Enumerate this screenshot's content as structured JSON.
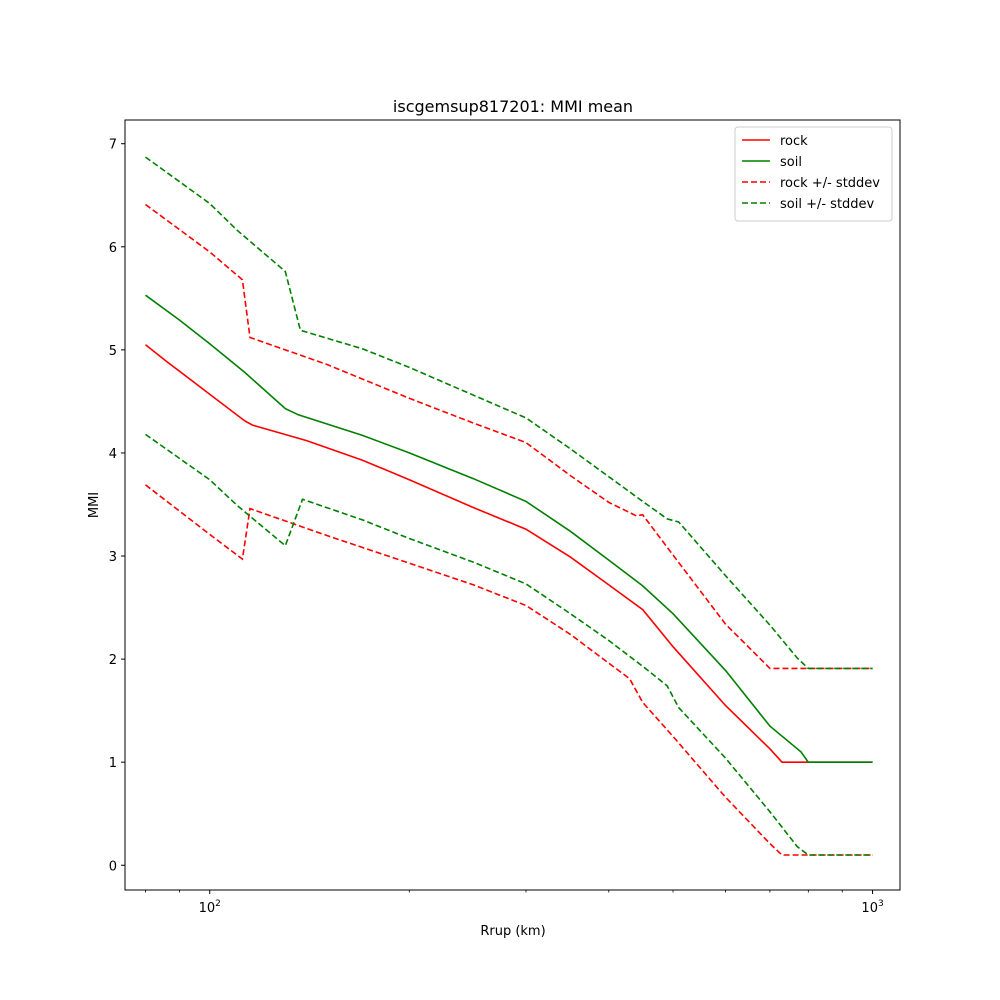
{
  "chart_data": {
    "type": "line",
    "title": "iscgemsup817201: MMI mean",
    "xlabel": "Rrup (km)",
    "ylabel": "MMI",
    "xscale": "log",
    "xlim": [
      74.5,
      1100
    ],
    "ylim": [
      -0.24,
      7.23
    ],
    "x_ticks": [
      {
        "value": 100,
        "base": "10",
        "exp": "2"
      },
      {
        "value": 1000,
        "base": "10",
        "exp": "3"
      }
    ],
    "y_ticks": [
      0,
      1,
      2,
      3,
      4,
      5,
      6,
      7
    ],
    "grid": false,
    "legend_position": "top-right",
    "series": [
      {
        "name": "rock",
        "color": "#ff0000",
        "dash": "solid",
        "x": [
          80,
          86,
          100,
          113,
          116,
          140,
          170,
          200,
          250,
          300,
          350,
          400,
          450,
          500,
          600,
          700,
          730,
          780,
          1000
        ],
        "y": [
          5.05,
          4.89,
          4.57,
          4.31,
          4.27,
          4.12,
          3.93,
          3.74,
          3.47,
          3.26,
          2.99,
          2.72,
          2.48,
          2.12,
          1.55,
          1.13,
          1.0,
          1.0,
          1.0
        ]
      },
      {
        "name": "soil",
        "color": "#008000",
        "dash": "solid",
        "x": [
          80,
          90,
          100,
          113,
          130,
          136,
          170,
          200,
          250,
          300,
          350,
          400,
          450,
          500,
          600,
          700,
          780,
          800,
          1000
        ],
        "y": [
          5.53,
          5.29,
          5.06,
          4.78,
          4.43,
          4.37,
          4.17,
          4.0,
          3.75,
          3.53,
          3.24,
          2.96,
          2.71,
          2.44,
          1.89,
          1.35,
          1.1,
          1.0,
          1.0
        ]
      },
      {
        "name": "rock +/- stddev",
        "color": "#ff0000",
        "dash": "dashed",
        "x": [
          80,
          100,
          112,
          115,
          150,
          200,
          250,
          300,
          350,
          400,
          440,
          450,
          500,
          600,
          700,
          730,
          780,
          1000
        ],
        "y": [
          6.41,
          5.95,
          5.68,
          5.12,
          4.86,
          4.53,
          4.29,
          4.1,
          3.78,
          3.52,
          3.39,
          3.4,
          3.01,
          2.34,
          1.91,
          1.91,
          1.91,
          1.91
        ]
      },
      {
        "name": "",
        "color": "#ff0000",
        "dash": "dashed",
        "x": [
          80,
          100,
          112,
          115,
          150,
          200,
          250,
          300,
          350,
          400,
          430,
          450,
          500,
          600,
          700,
          730,
          780,
          1000
        ],
        "y": [
          3.69,
          3.21,
          2.97,
          3.46,
          3.2,
          2.93,
          2.72,
          2.52,
          2.24,
          1.96,
          1.81,
          1.58,
          1.25,
          0.66,
          0.21,
          0.1,
          0.1,
          0.1
        ]
      },
      {
        "name": "soil +/- stddev",
        "color": "#008000",
        "dash": "dashed",
        "x": [
          80,
          100,
          110,
          130,
          137,
          170,
          200,
          250,
          300,
          350,
          400,
          450,
          490,
          510,
          600,
          700,
          770,
          800,
          1000
        ],
        "y": [
          6.87,
          6.42,
          6.16,
          5.76,
          5.19,
          5.01,
          4.83,
          4.56,
          4.34,
          4.04,
          3.77,
          3.53,
          3.36,
          3.33,
          2.81,
          2.33,
          2.01,
          1.91,
          1.91
        ]
      },
      {
        "name": "",
        "color": "#008000",
        "dash": "dashed",
        "x": [
          80,
          100,
          110,
          130,
          138,
          170,
          200,
          250,
          300,
          350,
          400,
          450,
          490,
          510,
          600,
          700,
          770,
          800,
          1000
        ],
        "y": [
          4.18,
          3.74,
          3.49,
          3.1,
          3.55,
          3.35,
          3.17,
          2.94,
          2.73,
          2.44,
          2.18,
          1.93,
          1.74,
          1.53,
          1.04,
          0.52,
          0.18,
          0.1,
          0.1
        ]
      }
    ]
  }
}
